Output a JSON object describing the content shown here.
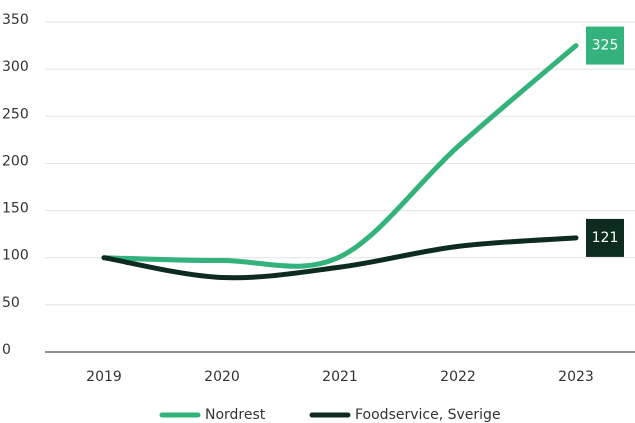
{
  "chart_data": {
    "type": "line",
    "categories": [
      "2019",
      "2020",
      "2021",
      "2022",
      "2023"
    ],
    "series": [
      {
        "name": "Nordrest",
        "color": "#34b27b",
        "values": [
          100,
          97,
          101,
          218,
          325
        ]
      },
      {
        "name": "Foodservice, Sverige",
        "color": "#0d2b1e",
        "values": [
          100,
          79,
          90,
          112,
          121
        ]
      }
    ],
    "ylim": [
      0,
      350
    ],
    "yticks": [
      0,
      50,
      100,
      150,
      200,
      250,
      300,
      350
    ],
    "grid": true,
    "legend": "bottom",
    "smooth": true
  }
}
